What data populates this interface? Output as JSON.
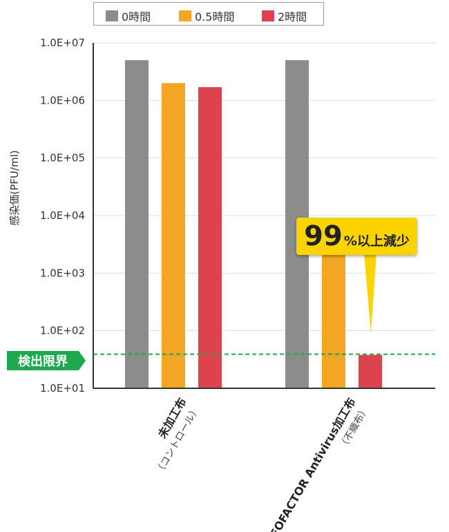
{
  "legend": [
    {
      "label": "0時間",
      "color": "#8c8c8a"
    },
    {
      "label": "0.5時間",
      "color": "#f2a623"
    },
    {
      "label": "2時間",
      "color": "#dc434c"
    }
  ],
  "callout": {
    "number": "99",
    "text": "%以上減少"
  },
  "detection_limit": {
    "label": "検出限界",
    "color": "#1fa84f"
  },
  "chart_data": {
    "type": "bar",
    "ylabel": "感染価(PFU/ml)",
    "yscale": "log",
    "ylim": [
      10,
      10000000
    ],
    "yticks": [
      "1.0E+01",
      "1.0E+02",
      "1.0E+03",
      "1.0E+04",
      "1.0E+05",
      "1.0E+06",
      "1.0E+07"
    ],
    "grid": true,
    "legend_position": "top",
    "categories": [
      {
        "name": "未加工布",
        "sub": "（コントロール）"
      },
      {
        "name": "DEOFACTOR Antivirus加工布",
        "sub": "（不織布）"
      }
    ],
    "series": [
      {
        "name": "0時間",
        "color": "#8c8c8a",
        "values": [
          5000000,
          5000000
        ]
      },
      {
        "name": "0.5時間",
        "color": "#f2a623",
        "values": [
          2000000,
          5000
        ]
      },
      {
        "name": "2時間",
        "color": "#dc434c",
        "values": [
          1700000,
          38
        ]
      }
    ],
    "detection_limit_value": 38
  }
}
